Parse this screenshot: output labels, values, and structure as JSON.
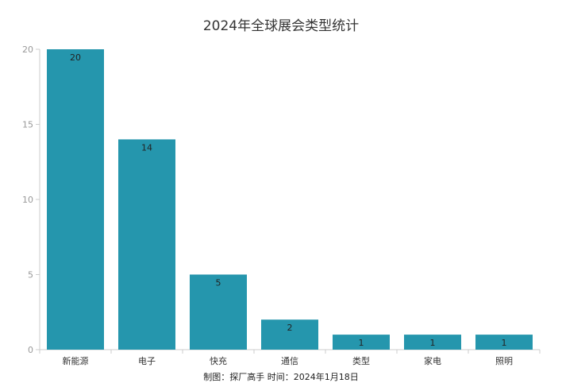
{
  "chart_data": {
    "type": "bar",
    "title": "2024年全球展会类型统计",
    "categories": [
      "新能源",
      "电子",
      "快充",
      "通信",
      "类型",
      "家电",
      "照明"
    ],
    "values": [
      20,
      14,
      5,
      2,
      1,
      1,
      1
    ],
    "yticks": [
      0,
      5,
      10,
      15,
      20
    ],
    "ylim": [
      0,
      20
    ],
    "xlabel": "",
    "ylabel": "",
    "grid": false,
    "bar_color": "#2596ad",
    "footnote": "制图：探厂高手 时间：2024年1月18日"
  }
}
